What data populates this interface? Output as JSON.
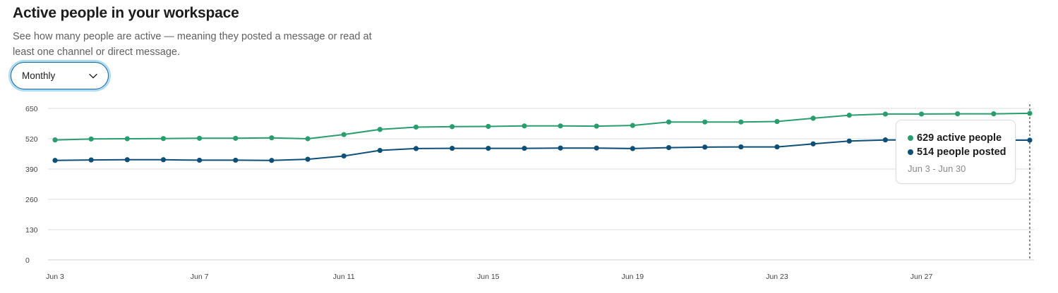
{
  "header": {
    "title": "Active people in your workspace",
    "subtitle": "See how many people are active — meaning they posted a message or read at least one channel or direct message."
  },
  "period_select": {
    "value": "Monthly",
    "icon": "chevron-down-icon"
  },
  "tooltip": {
    "active_label": "629 active people",
    "posted_label": "514 people posted",
    "range": "Jun 3 - Jun 30"
  },
  "colors": {
    "active": "#2a9d6f",
    "posted": "#0e4f78",
    "grid": "#dddddd",
    "accent": "#1264a3"
  },
  "chart_data": {
    "type": "line",
    "x": [
      "Jun 3",
      "Jun 4",
      "Jun 5",
      "Jun 6",
      "Jun 7",
      "Jun 8",
      "Jun 9",
      "Jun 10",
      "Jun 11",
      "Jun 12",
      "Jun 13",
      "Jun 14",
      "Jun 15",
      "Jun 16",
      "Jun 17",
      "Jun 18",
      "Jun 19",
      "Jun 20",
      "Jun 21",
      "Jun 22",
      "Jun 23",
      "Jun 24",
      "Jun 25",
      "Jun 26",
      "Jun 27",
      "Jun 28",
      "Jun 29",
      "Jun 30"
    ],
    "x_tick_labels": [
      "Jun 3",
      "Jun 7",
      "Jun 11",
      "Jun 15",
      "Jun 19",
      "Jun 23",
      "Jun 27"
    ],
    "y_ticks": [
      0,
      130,
      260,
      390,
      520,
      650
    ],
    "ylim": [
      0,
      650
    ],
    "grid": true,
    "series": [
      {
        "key": "active",
        "values": [
          515,
          519,
          520,
          521,
          522,
          522,
          524,
          520,
          538,
          560,
          570,
          572,
          573,
          575,
          575,
          574,
          577,
          592,
          592,
          592,
          594,
          608,
          621,
          626,
          626,
          627,
          627,
          629
        ]
      },
      {
        "key": "posted",
        "values": [
          427,
          429,
          430,
          430,
          428,
          428,
          427,
          432,
          446,
          470,
          478,
          479,
          479,
          479,
          480,
          480,
          478,
          482,
          484,
          485,
          485,
          498,
          510,
          515,
          514,
          514,
          514,
          514
        ]
      }
    ],
    "hover_index": 27
  }
}
